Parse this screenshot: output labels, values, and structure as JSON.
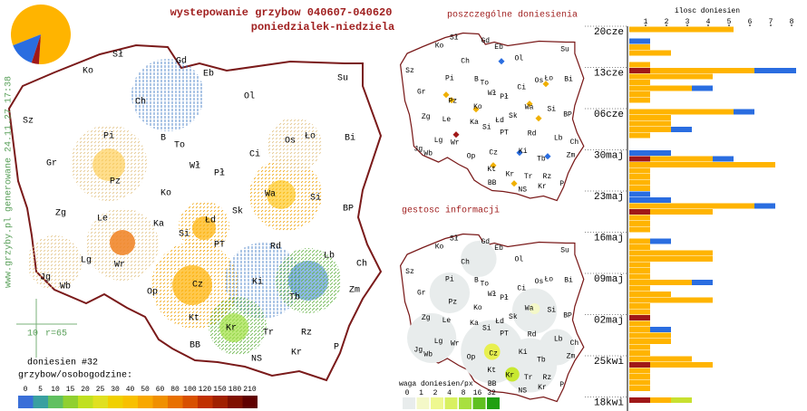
{
  "title": "wystepowanie grzybow 040607-040620",
  "subtitle": "poniedzialek-niedziela",
  "pie": {
    "values": [
      82,
      14,
      4
    ],
    "colors": [
      "#ffb400",
      "#2a6de0",
      "#a01818"
    ]
  },
  "cities": [
    "Sł",
    "Gd",
    "Eb",
    "Ko",
    "Su",
    "Ol",
    "Sz",
    "Ch",
    "Pi",
    "B",
    "To",
    "Gr",
    "Wł",
    "Pł",
    "Ci",
    "Os",
    "Ło",
    "Bi",
    "Pz",
    "Ko",
    "Wa",
    "Si",
    "Zg",
    "Le",
    "Ka",
    "Łd",
    "Sk",
    "BP",
    "Si",
    "PT",
    "Rd",
    "Lb",
    "Lg",
    "Wr",
    "Ch",
    "Jg",
    "Wb",
    "Op",
    "Cz",
    "Ki",
    "Tb",
    "Zm",
    "Kt",
    "Kr",
    "Tr",
    "Rz",
    "BB",
    "Kr",
    "NS",
    "P"
  ],
  "credit": "www.grzyby.pl generowane 24.11.27 17:38",
  "scale_bar": {
    "length": "10",
    "radius": "r=65"
  },
  "report_count": "doniesien #32",
  "scale_title": "grzybow/osobogodzine:",
  "color_scale": {
    "labels": [
      0,
      5,
      10,
      15,
      20,
      25,
      30,
      40,
      50,
      60,
      80,
      100,
      120,
      150,
      180,
      210
    ],
    "colors": [
      "#3a6fd8",
      "#3aa0a0",
      "#60c060",
      "#90d030",
      "#c0e020",
      "#e0e020",
      "#f0d000",
      "#f8c000",
      "#f8a800",
      "#f09000",
      "#e87000",
      "#d85000",
      "#c03000",
      "#a02000",
      "#801000",
      "#600000"
    ]
  },
  "map_reports_title": "poszczególne doniesienia",
  "map_density_title": "gestosc informacji",
  "weight_title": "waga doniesien/px",
  "weight_scale": {
    "labels": [
      0,
      1,
      2,
      4,
      8,
      16,
      32
    ],
    "colors": [
      "#e8ecec",
      "#f4f8c8",
      "#eef890",
      "#d8f060",
      "#a8e040",
      "#60c020",
      "#20a010"
    ]
  },
  "chart_data": {
    "type": "bar",
    "orientation": "horizontal",
    "x_label": "ilosc doniesien",
    "xlim": [
      0,
      8
    ],
    "xticks": [
      1,
      2,
      3,
      4,
      5,
      6,
      7,
      8
    ],
    "week_labels": [
      "20cze",
      "13cze",
      "06cze",
      "30maj",
      "23maj",
      "16maj",
      "09maj",
      "02maj",
      "25kwi",
      "18kwi"
    ],
    "series": [
      {
        "color": "#a01818",
        "values": [
          null,
          null,
          null,
          null,
          null,
          null,
          null,
          1,
          null,
          null,
          null,
          null,
          null,
          null,
          null,
          null,
          null,
          null,
          null,
          null,
          null,
          null,
          1,
          null,
          null,
          null,
          null,
          null,
          null,
          null,
          null,
          1,
          null,
          null,
          null,
          null,
          null,
          null,
          null,
          null,
          null,
          null,
          null,
          null,
          null,
          null,
          null,
          null,
          null,
          1,
          null,
          null,
          null,
          null,
          null,
          null,
          null,
          1,
          null,
          null,
          null,
          null,
          null,
          1
        ]
      },
      {
        "color": "#ffb400",
        "values": [
          5,
          null,
          null,
          1,
          2,
          null,
          1,
          5,
          4,
          1,
          3,
          1,
          1,
          null,
          5,
          2,
          2,
          2,
          1,
          null,
          null,
          null,
          3,
          7,
          1,
          1,
          1,
          1,
          null,
          null,
          6,
          3,
          1,
          1,
          1,
          null,
          1,
          1,
          4,
          4,
          1,
          1,
          1,
          3,
          1,
          2,
          4,
          1,
          1,
          null,
          1,
          1,
          2,
          2,
          1,
          1,
          3,
          3,
          1,
          1,
          1,
          1,
          null,
          1
        ]
      },
      {
        "color": "#2a6de0",
        "values": [
          null,
          null,
          1,
          null,
          null,
          null,
          null,
          2,
          null,
          null,
          1,
          null,
          null,
          null,
          1,
          null,
          null,
          1,
          null,
          null,
          null,
          2,
          1,
          null,
          null,
          null,
          null,
          null,
          1,
          2,
          1,
          null,
          null,
          null,
          null,
          null,
          1,
          null,
          null,
          null,
          null,
          null,
          null,
          1,
          null,
          null,
          null,
          null,
          null,
          null,
          null,
          1,
          null,
          null,
          null,
          null,
          null,
          null,
          null,
          null,
          null,
          null,
          null,
          null
        ]
      },
      {
        "color": "#c8e030",
        "values": [
          null,
          null,
          null,
          null,
          null,
          null,
          null,
          null,
          null,
          null,
          null,
          null,
          null,
          null,
          null,
          null,
          null,
          null,
          null,
          null,
          null,
          null,
          null,
          null,
          null,
          null,
          null,
          null,
          null,
          null,
          null,
          null,
          null,
          null,
          null,
          null,
          null,
          null,
          null,
          null,
          null,
          null,
          null,
          null,
          null,
          null,
          null,
          null,
          null,
          null,
          null,
          null,
          null,
          null,
          null,
          null,
          null,
          null,
          null,
          null,
          null,
          null,
          null,
          1
        ]
      }
    ]
  }
}
